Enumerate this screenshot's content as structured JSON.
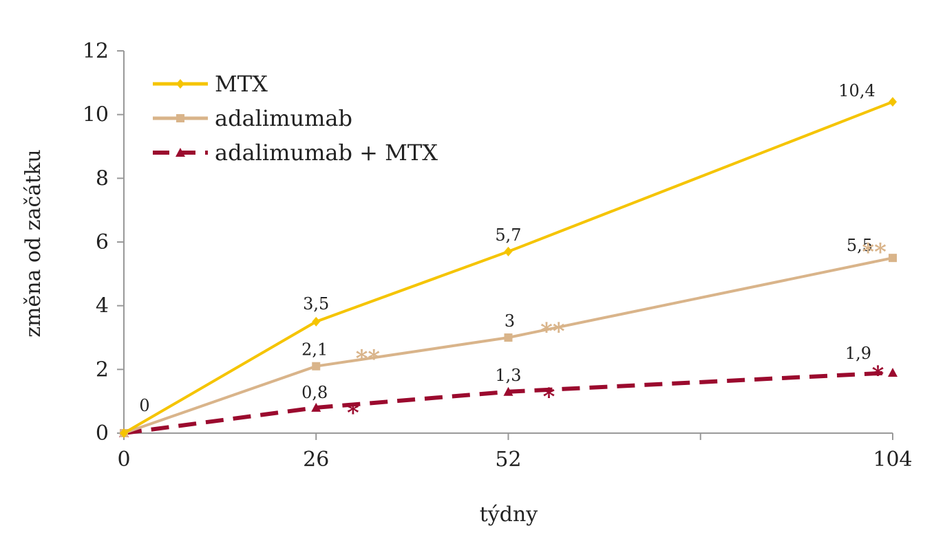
{
  "chart_data": {
    "type": "line",
    "xlabel": "týdny",
    "ylabel": "změna od začátku",
    "x_ticks": [
      0,
      26,
      52,
      104
    ],
    "xlim": [
      0,
      104
    ],
    "y_ticks": [
      0,
      2,
      4,
      6,
      8,
      10,
      12
    ],
    "ylim": [
      0,
      12
    ],
    "legend_position": "top-left",
    "series": [
      {
        "name": "MTX",
        "color": "#F5C400",
        "marker": "diamond",
        "line_style": "solid",
        "points": [
          {
            "x": 0,
            "y": 0,
            "label": ""
          },
          {
            "x": 26,
            "y": 3.5,
            "label": "3,5"
          },
          {
            "x": 52,
            "y": 5.7,
            "label": "5,7"
          },
          {
            "x": 104,
            "y": 10.4,
            "label": "10,4"
          }
        ]
      },
      {
        "name": "adalimumab",
        "color": "#D9B48A",
        "marker": "square",
        "line_style": "solid",
        "points": [
          {
            "x": 0,
            "y": 0,
            "label": ""
          },
          {
            "x": 26,
            "y": 2.1,
            "label": "2,1"
          },
          {
            "x": 52,
            "y": 3.0,
            "label": "3"
          },
          {
            "x": 104,
            "y": 5.5,
            "label": "5,5"
          }
        ]
      },
      {
        "name": "adalimumab + MTX",
        "color": "#9B0A2E",
        "marker": "triangle",
        "line_style": "dashed",
        "points": [
          {
            "x": 0,
            "y": 0,
            "label": "0"
          },
          {
            "x": 26,
            "y": 0.8,
            "label": "0,8"
          },
          {
            "x": 52,
            "y": 1.3,
            "label": "1,3"
          },
          {
            "x": 104,
            "y": 1.9,
            "label": "1,9"
          }
        ]
      }
    ],
    "annotations": [
      {
        "text": "**",
        "x": 33,
        "y": 2.35,
        "color": "#D9B48A"
      },
      {
        "text": "*",
        "x": 31,
        "y": 0.65,
        "color": "#9B0A2E"
      },
      {
        "text": "**",
        "x": 58,
        "y": 3.2,
        "color": "#D9B48A"
      },
      {
        "text": "*",
        "x": 57.5,
        "y": 1.15,
        "color": "#9B0A2E"
      },
      {
        "text": "**",
        "x": 101.5,
        "y": 5.7,
        "color": "#D9B48A"
      },
      {
        "text": "*",
        "x": 102,
        "y": 1.85,
        "color": "#9B0A2E"
      }
    ]
  }
}
